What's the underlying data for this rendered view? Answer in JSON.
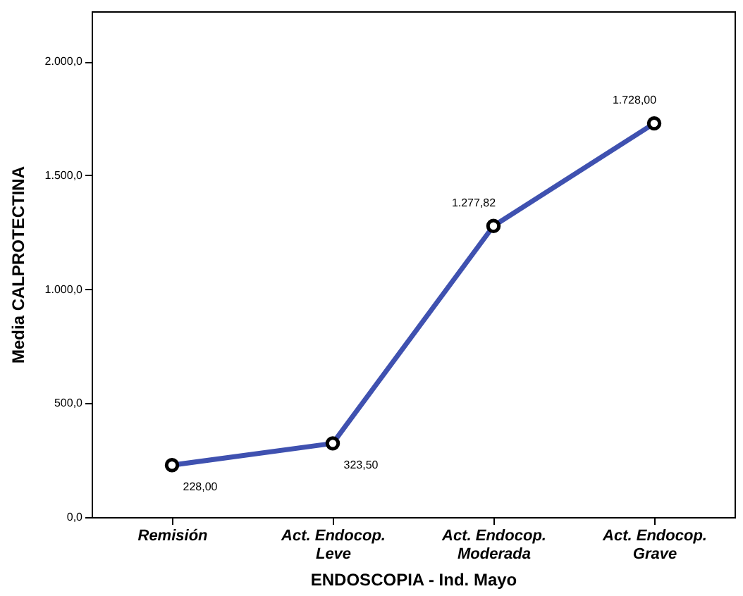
{
  "chart_data": {
    "type": "line",
    "xlabel": "ENDOSCOPIA - Ind. Mayo",
    "ylabel": "Media CALPROTECTINA",
    "categories": [
      "Remisión",
      "Act. Endocop. Leve",
      "Act. Endocop. Moderada",
      "Act. Endocop. Grave"
    ],
    "series": [
      {
        "color": "#3f51b0",
        "values": [
          228.0,
          323.5,
          1277.82,
          1728.0
        ],
        "value_labels": [
          "228,00",
          "323,50",
          "1.277,82",
          "1.728,00"
        ]
      }
    ],
    "ylim": [
      0,
      2220
    ],
    "yticks": [
      {
        "value": 0,
        "label": "0,0"
      },
      {
        "value": 500,
        "label": "500,0"
      },
      {
        "value": 1000,
        "label": "1.000,0"
      },
      {
        "value": 1500,
        "label": "1.500,0"
      },
      {
        "value": 2000,
        "label": "2.000,0"
      }
    ],
    "marker": "circle",
    "line_style": "solid",
    "grid": false
  }
}
